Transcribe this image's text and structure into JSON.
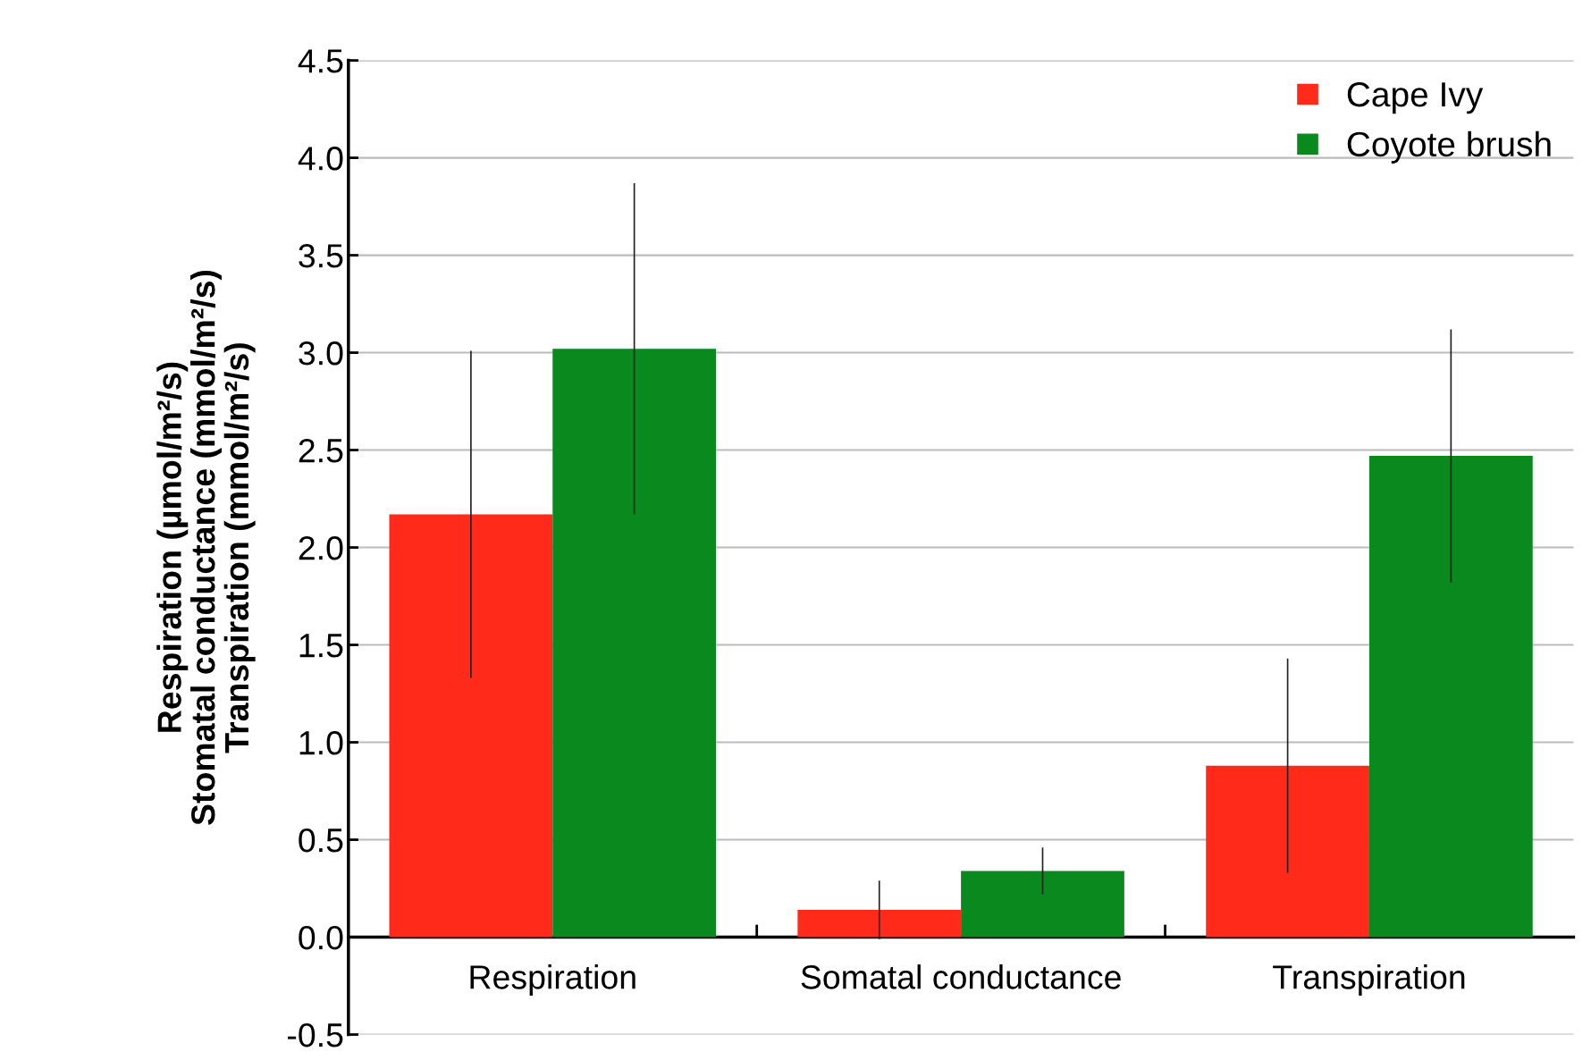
{
  "chart_data": {
    "type": "bar",
    "ylabel": "Respiration (µmol/m²/s)\nStomatal conductance (mmol/m²/s)\nTranspiration (mmol/m²/s)",
    "categories": [
      "Respiration",
      "Somatal conductance",
      "Transpiration"
    ],
    "series": [
      {
        "name": "Cape Ivy",
        "color": "#ff2a1a",
        "values": [
          2.17,
          0.14,
          0.88
        ],
        "errors": [
          0.84,
          0.15,
          0.55
        ]
      },
      {
        "name": "Coyote brush",
        "color": "#0a8a1e",
        "values": [
          3.02,
          0.34,
          2.47
        ],
        "errors": [
          0.85,
          0.12,
          0.65
        ]
      }
    ],
    "ylim": [
      -0.5,
      4.5
    ],
    "yticks": [
      {
        "value": -0.5,
        "label": "-0.5"
      },
      {
        "value": 0,
        "label": "0.0"
      },
      {
        "value": 0.5,
        "label": "0.5"
      },
      {
        "value": 1,
        "label": "1.0"
      },
      {
        "value": 1.5,
        "label": "1.5"
      },
      {
        "value": 2,
        "label": "2.0"
      },
      {
        "value": 2.5,
        "label": "2.5"
      },
      {
        "value": 3,
        "label": "3.0"
      },
      {
        "value": 3.5,
        "label": "3.5"
      },
      {
        "value": 4,
        "label": "4.0"
      },
      {
        "value": 4.5,
        "label": "4.5"
      }
    ],
    "grid": "y",
    "legend": "top right",
    "marker": "square"
  }
}
